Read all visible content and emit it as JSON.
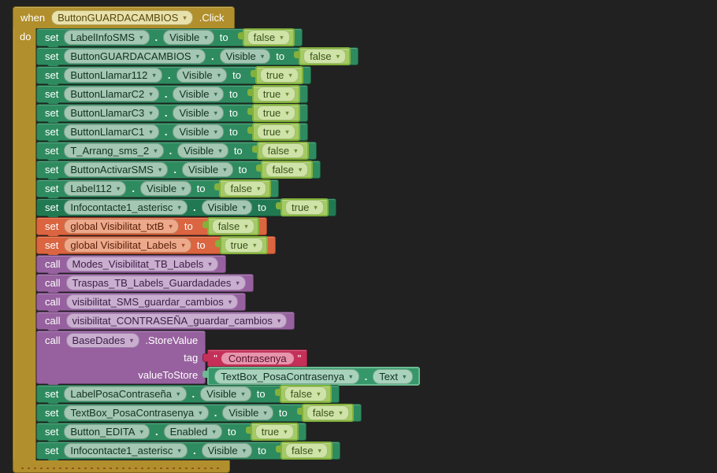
{
  "colors": {
    "background": "#212121",
    "event_gold": "#b18f2c",
    "setter_green": "#2e8b5f",
    "setter_green_dark": "#217952",
    "variable_orange": "#da6540",
    "call_purple": "#96619e",
    "logic_lime": "#a4ca65",
    "text_crimson": "#c53058",
    "getter_green": "#35976a"
  },
  "event": {
    "keyword": "when",
    "component": "ButtonGUARDACAMBIOS",
    "event_suffix": ".Click",
    "do_label": "do"
  },
  "statements": [
    {
      "type": "prop",
      "keyword": "set",
      "component": "LabelInfoSMS",
      "dot": ".",
      "property": "Visible",
      "to_label": "to",
      "value": "false"
    },
    {
      "type": "prop",
      "keyword": "set",
      "component": "ButtonGUARDACAMBIOS",
      "dot": ".",
      "property": "Visible",
      "to_label": "to",
      "value": "false"
    },
    {
      "type": "prop",
      "keyword": "set",
      "component": "ButtonLlamar112",
      "dot": ".",
      "property": "Visible",
      "to_label": "to",
      "value": "true"
    },
    {
      "type": "prop",
      "keyword": "set",
      "component": "ButtonLlamarC2",
      "dot": ".",
      "property": "Visible",
      "to_label": "to",
      "value": "true"
    },
    {
      "type": "prop",
      "keyword": "set",
      "component": "ButtonLlamarC3",
      "dot": ".",
      "property": "Visible",
      "to_label": "to",
      "value": "true"
    },
    {
      "type": "prop",
      "keyword": "set",
      "component": "ButtonLlamarC1",
      "dot": ".",
      "property": "Visible",
      "to_label": "to",
      "value": "true"
    },
    {
      "type": "prop",
      "keyword": "set",
      "component": "T_Arrang_sms_2",
      "dot": ".",
      "property": "Visible",
      "to_label": "to",
      "value": "false"
    },
    {
      "type": "prop",
      "keyword": "set",
      "component": "ButtonActivarSMS",
      "dot": ".",
      "property": "Visible",
      "to_label": "to",
      "value": "false"
    },
    {
      "type": "prop",
      "keyword": "set",
      "component": "Label112",
      "dot": ".",
      "property": "Visible",
      "to_label": "to",
      "value": "false"
    },
    {
      "type": "prop",
      "variant": "dark",
      "keyword": "set",
      "component": "Infocontacte1_asterisc",
      "dot": ".",
      "property": "Visible",
      "to_label": "to",
      "value": "true"
    },
    {
      "type": "var",
      "keyword": "set",
      "variable": "global Visibilitat_txtB",
      "to_label": "to",
      "value": "false"
    },
    {
      "type": "var",
      "keyword": "set",
      "variable": "global Visibilitat_Labels",
      "to_label": "to",
      "value": "true"
    },
    {
      "type": "call",
      "keyword": "call",
      "procedure": "Modes_Visibilitat_TB_Labels"
    },
    {
      "type": "call",
      "keyword": "call",
      "procedure": "Traspas_TB_Labels_Guardadades"
    },
    {
      "type": "call",
      "keyword": "call",
      "procedure": "visibilitat_SMS_guardar_cambios"
    },
    {
      "type": "call",
      "keyword": "call",
      "procedure": "visibilitat_CONTRASEÑA_guardar_cambios"
    },
    {
      "type": "method",
      "keyword": "call",
      "component": "BaseDades",
      "method_label": ".StoreValue",
      "params": [
        {
          "name": "tag",
          "value": {
            "kind": "text",
            "open_quote": "\"",
            "text": "Contrasenya",
            "close_quote": "\""
          }
        },
        {
          "name": "valueToStore",
          "value": {
            "kind": "getter",
            "component": "TextBox_PosaContrasenya",
            "dot": ".",
            "property": "Text"
          }
        }
      ]
    },
    {
      "type": "prop",
      "keyword": "set",
      "component": "LabelPosaContraseña",
      "dot": ".",
      "property": "Visible",
      "to_label": "to",
      "value": "false"
    },
    {
      "type": "prop",
      "keyword": "set",
      "component": "TextBox_PosaContrasenya",
      "dot": ".",
      "property": "Visible",
      "to_label": "to",
      "value": "false"
    },
    {
      "type": "prop",
      "keyword": "set",
      "component": "Button_EDITA",
      "dot": ".",
      "property": "Enabled",
      "to_label": "to",
      "value": "true"
    },
    {
      "type": "prop",
      "keyword": "set",
      "component": "Infocontacte1_asterisc",
      "dot": ".",
      "property": "Visible",
      "to_label": "to",
      "value": "false"
    }
  ]
}
